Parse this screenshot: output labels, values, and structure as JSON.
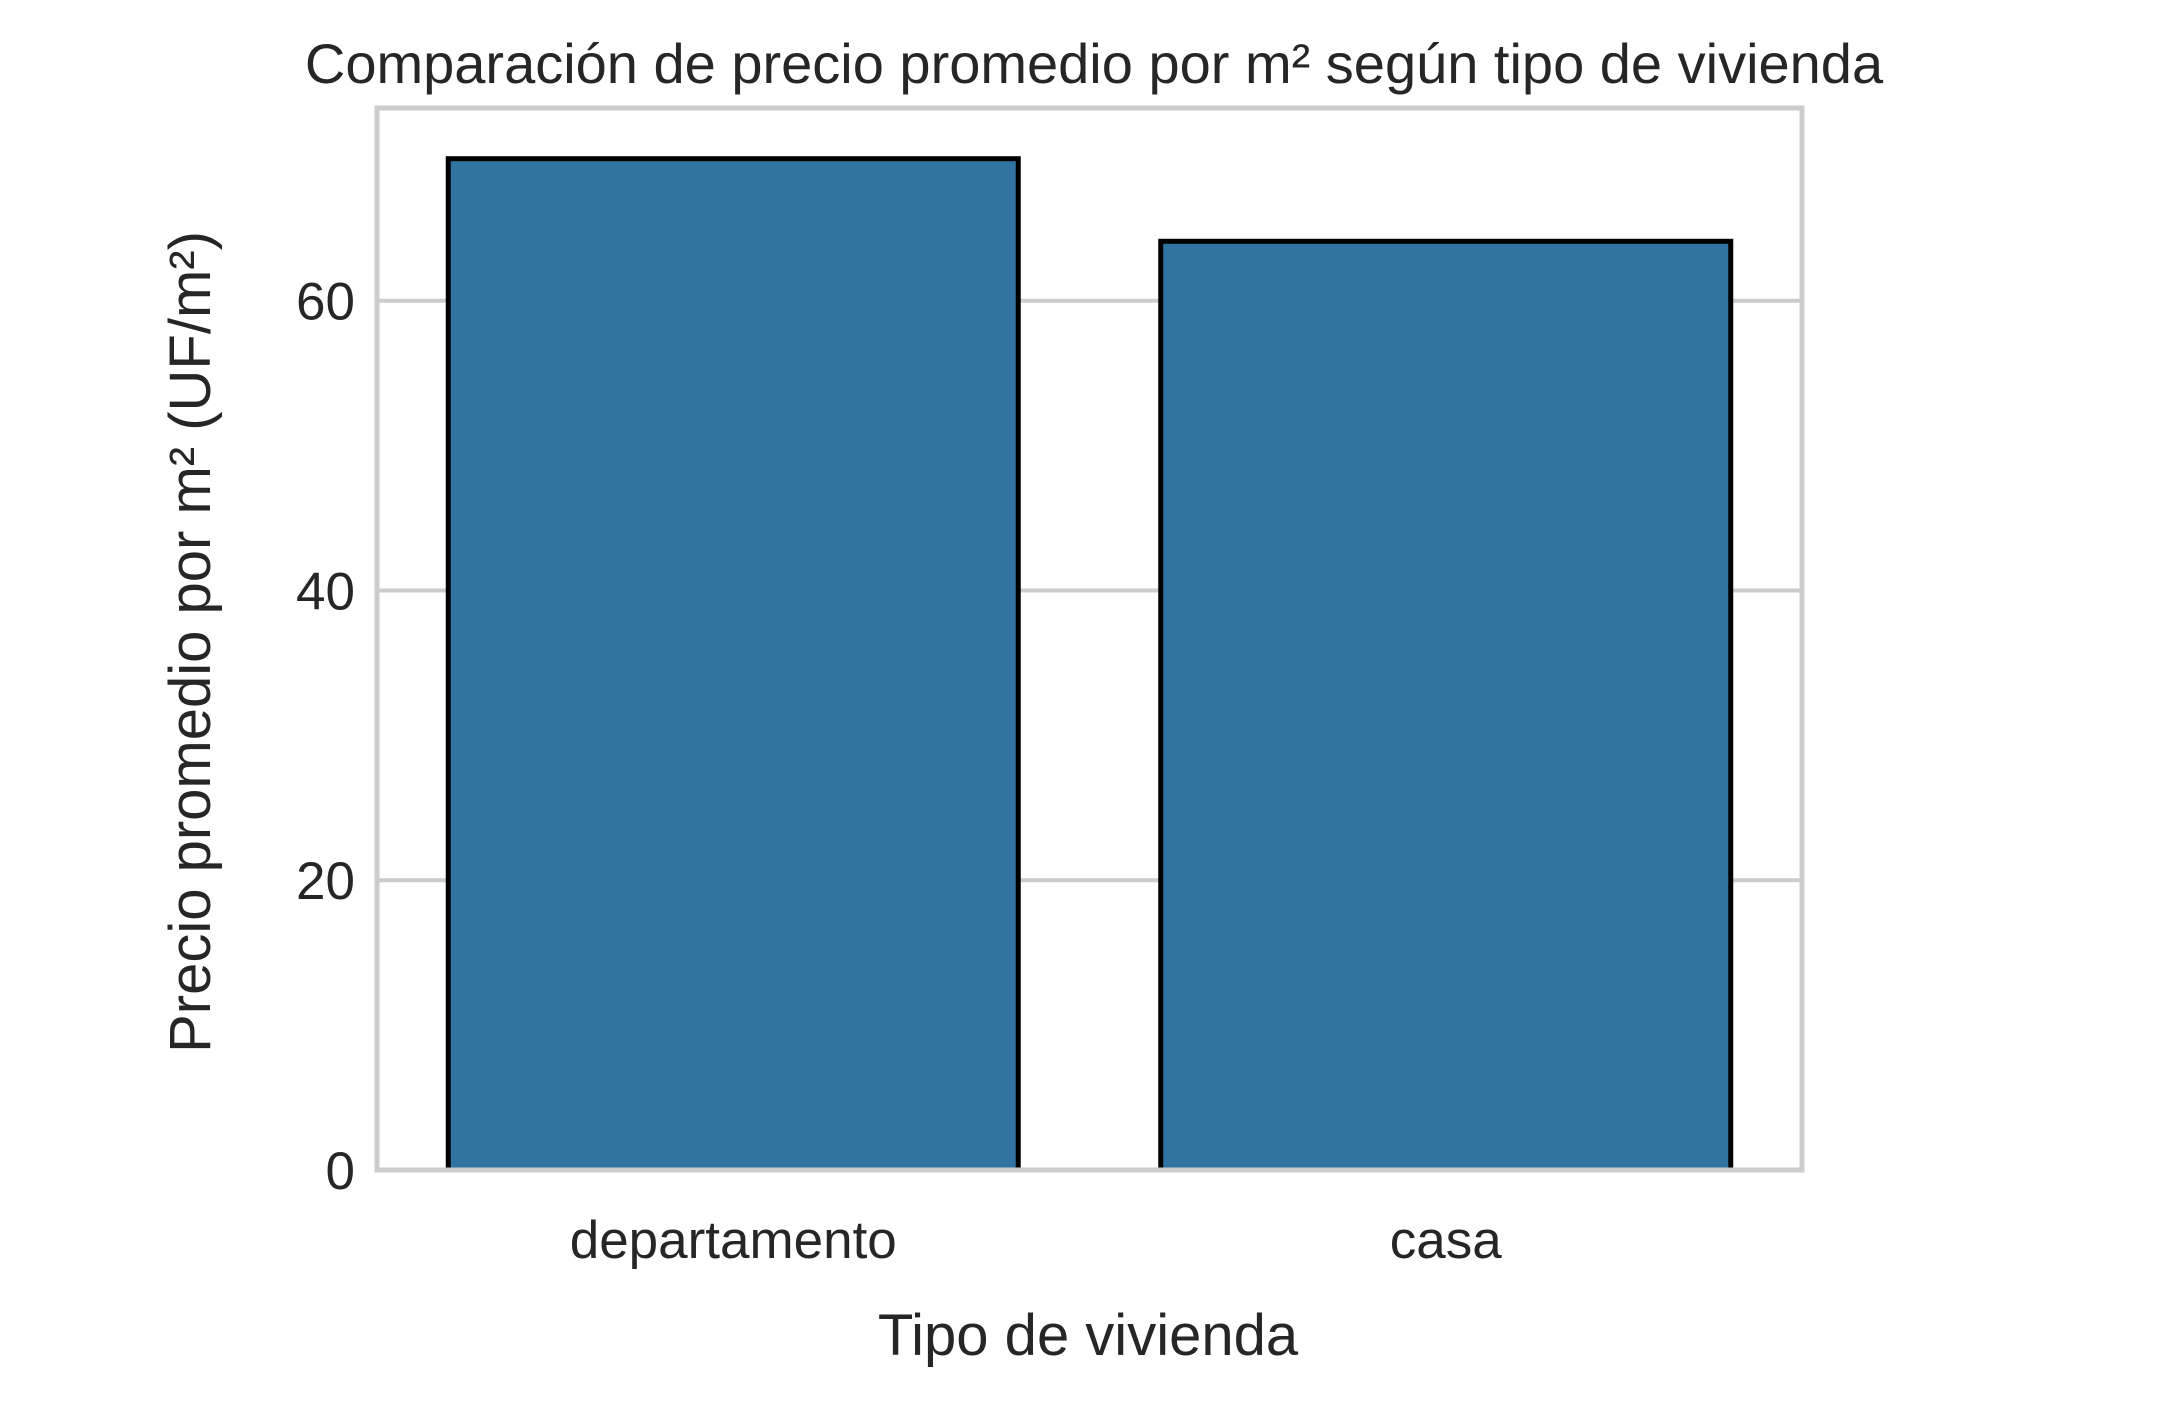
{
  "chart_data": {
    "type": "bar",
    "title": "Comparación de precio promedio por m² según tipo de vivienda",
    "xlabel": "Tipo de vivienda",
    "ylabel": "Precio promedio por m² (UF/m²)",
    "categories": [
      "departamento",
      "casa"
    ],
    "values": [
      69.8,
      64.1
    ],
    "ylim": [
      0,
      73.3
    ],
    "yticks": [
      0,
      20,
      40,
      60
    ],
    "ytick_labels": [
      "0",
      "20",
      "40",
      "60"
    ],
    "grid": true,
    "bar_color": "#3274a1",
    "bar_edge_color": "#000000",
    "frame_color": "#cccccc",
    "text_color": "#262626"
  }
}
